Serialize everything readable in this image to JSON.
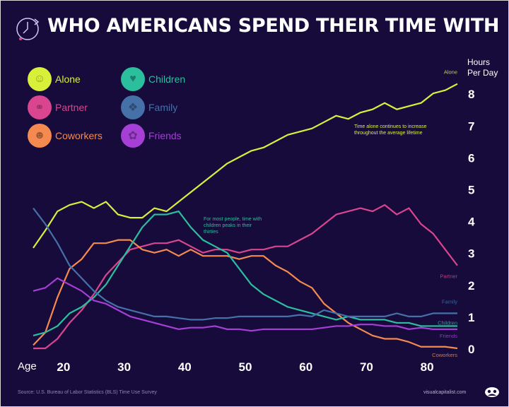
{
  "title": "WHO AMERICANS SPEND THEIR TIME WITH",
  "source": "Source: U.S. Bureau of Labor Statistics (BLS) Time Use Survey",
  "site": "visualcapitalist.com",
  "colors": {
    "background": "#170b3b"
  },
  "chart_data": {
    "type": "line",
    "title": "WHO AMERICANS SPEND THEIR TIME WITH",
    "xlabel": "Age",
    "ylabel": "Hours Per Day",
    "xlim": [
      15,
      85
    ],
    "ylim": [
      0,
      8.5
    ],
    "xticks": [
      20,
      30,
      40,
      50,
      60,
      70,
      80
    ],
    "yticks": [
      0,
      1,
      2,
      3,
      4,
      5,
      6,
      7,
      8
    ],
    "grid": false,
    "legend_placement": "top-left",
    "x": [
      15,
      17,
      19,
      21,
      23,
      25,
      27,
      29,
      31,
      33,
      35,
      37,
      39,
      41,
      43,
      45,
      47,
      49,
      51,
      53,
      55,
      57,
      59,
      61,
      63,
      65,
      67,
      69,
      71,
      73,
      75,
      77,
      79,
      81,
      83,
      85
    ],
    "series": [
      {
        "name": "Alone",
        "color": "#d8f03a",
        "icon": "person-icon",
        "values": [
          3.15,
          3.7,
          4.3,
          4.5,
          4.6,
          4.4,
          4.6,
          4.2,
          4.1,
          4.1,
          4.4,
          4.3,
          4.6,
          4.9,
          5.2,
          5.5,
          5.8,
          6.0,
          6.2,
          6.3,
          6.5,
          6.7,
          6.8,
          6.9,
          7.1,
          7.3,
          7.2,
          7.4,
          7.5,
          7.7,
          7.5,
          7.6,
          7.7,
          8.0,
          8.1,
          8.3
        ]
      },
      {
        "name": "Partner",
        "color": "#d9458e",
        "icon": "couple-icon",
        "values": [
          0,
          0,
          0.3,
          0.8,
          1.2,
          1.7,
          2.3,
          2.7,
          3.1,
          3.2,
          3.3,
          3.3,
          3.4,
          3.2,
          3.0,
          3.1,
          3.1,
          3.0,
          3.1,
          3.1,
          3.2,
          3.2,
          3.4,
          3.6,
          3.9,
          4.2,
          4.3,
          4.4,
          4.3,
          4.5,
          4.2,
          4.4,
          3.9,
          3.6,
          3.1,
          2.6
        ]
      },
      {
        "name": "Coworkers",
        "color": "#f58a50",
        "icon": "group-icon",
        "values": [
          0.1,
          0.5,
          1.6,
          2.5,
          2.8,
          3.3,
          3.3,
          3.4,
          3.4,
          3.1,
          3.0,
          3.1,
          2.9,
          3.1,
          2.9,
          2.9,
          2.9,
          2.8,
          2.9,
          2.9,
          2.6,
          2.4,
          2.1,
          1.9,
          1.4,
          1.1,
          0.8,
          0.6,
          0.4,
          0.3,
          0.3,
          0.2,
          0.05,
          0.05,
          0.05,
          0.0
        ]
      },
      {
        "name": "Children",
        "color": "#2bbf9e",
        "icon": "parent-child-icon",
        "values": [
          0.4,
          0.5,
          0.7,
          1.1,
          1.3,
          1.6,
          2.0,
          2.6,
          3.2,
          3.8,
          4.2,
          4.2,
          4.3,
          3.8,
          3.4,
          3.2,
          3.0,
          2.5,
          2.0,
          1.7,
          1.5,
          1.3,
          1.2,
          1.1,
          1.0,
          0.9,
          1.0,
          0.9,
          0.9,
          0.9,
          0.8,
          0.8,
          0.7,
          0.7,
          0.7,
          0.7
        ]
      },
      {
        "name": "Family",
        "color": "#4570a8",
        "icon": "family-icon",
        "values": [
          4.4,
          3.9,
          3.3,
          2.6,
          2.2,
          1.8,
          1.5,
          1.3,
          1.2,
          1.1,
          1.0,
          1.0,
          0.95,
          0.9,
          0.9,
          0.95,
          0.95,
          1.0,
          1.0,
          1.0,
          1.0,
          1.0,
          1.05,
          1.0,
          1.2,
          1.1,
          1.0,
          1.0,
          1.0,
          1.0,
          1.1,
          1.0,
          1.0,
          1.1,
          1.1,
          1.1
        ]
      },
      {
        "name": "Friends",
        "color": "#a53fd6",
        "icon": "friends-icon",
        "values": [
          1.8,
          1.9,
          2.2,
          2.0,
          1.8,
          1.5,
          1.4,
          1.2,
          1.0,
          0.9,
          0.8,
          0.7,
          0.6,
          0.65,
          0.65,
          0.7,
          0.6,
          0.6,
          0.55,
          0.6,
          0.6,
          0.6,
          0.6,
          0.6,
          0.65,
          0.7,
          0.7,
          0.75,
          0.75,
          0.7,
          0.7,
          0.6,
          0.65,
          0.6,
          0.6,
          0.6
        ]
      }
    ],
    "annotations": [
      {
        "text": "Time alone continues to increase throughout the average lifetime",
        "color": "#d8f03a"
      },
      {
        "text": "For most people, time with children peaks in their thirties",
        "color": "#2bbf9e"
      }
    ]
  }
}
